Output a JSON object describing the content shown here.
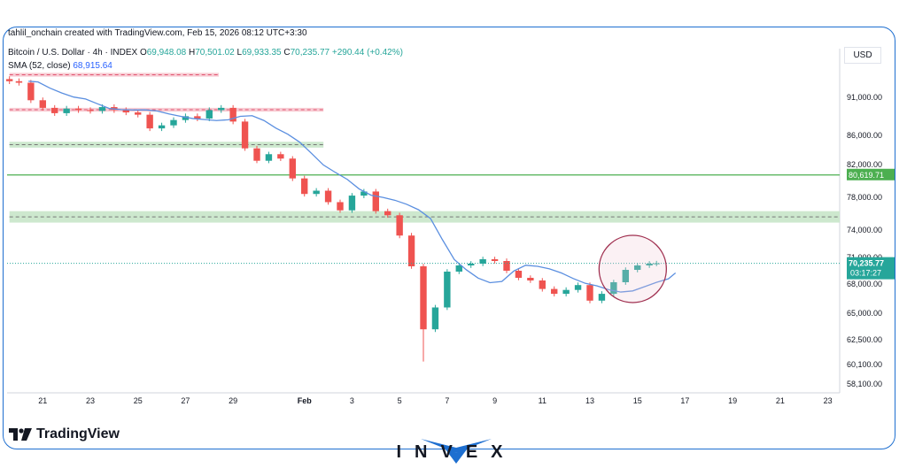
{
  "credit": "tahlil_onchain created with TradingView.com, Feb 15, 2026 08:12 UTC+3:30",
  "legend": {
    "symbol": "Bitcoin / U.S. Dollar · 4h · INDEX",
    "open_label": "O",
    "open": "69,948.08",
    "high_label": "H",
    "high": "70,501.02",
    "low_label": "L",
    "low": "69,933.35",
    "close_label": "C",
    "close": "70,235.77",
    "change": "+290.44 (+0.42%)",
    "sma_label": "SMA (52, close)",
    "sma_value": "68,915.64"
  },
  "currency": "USD",
  "brand": "TradingView",
  "watermark": {
    "letters": "INVEX"
  },
  "colors": {
    "up": "#26a69a",
    "down": "#ef5350",
    "sma": "#5b8fe0",
    "green_line": "#4caf50",
    "red_zone": "#f7c6cf",
    "green_zone": "#c8e6c9",
    "circle": "#a03050",
    "frame": "#1e6fd0"
  },
  "chart_data": {
    "type": "candlestick",
    "timeframe": "4h",
    "x_tick_labels": [
      "21",
      "23",
      "25",
      "27",
      "29",
      "Feb",
      "3",
      "5",
      "7",
      "9",
      "11",
      "13",
      "15",
      "17",
      "19",
      "21",
      "23"
    ],
    "y_tick_labels": [
      "58,100.00",
      "60,100.00",
      "62,500.00",
      "65,000.00",
      "68,000.00",
      "71,000.00",
      "74,000.00",
      "78,000.00",
      "82,000.00",
      "86,000.00",
      "91,000.00"
    ],
    "y_ticks": [
      58100,
      60100,
      62500,
      65000,
      68000,
      71000,
      74000,
      78000,
      82000,
      86000,
      91000
    ],
    "ylim": [
      57200,
      95200
    ],
    "x_range_days": [
      19.5,
      54.5
    ],
    "sma_period": 52,
    "last_price": 70235.77,
    "last_price_label": "70,235.77",
    "countdown": "03:17:27",
    "green_line_label": "80,619.71",
    "green_line_level": 80619.71,
    "zones": [
      {
        "kind": "resistance",
        "color": "red",
        "low": 93600,
        "high": 94100,
        "from_day": 19.6,
        "to_day": 28.4,
        "midline": true
      },
      {
        "kind": "resistance",
        "color": "red",
        "low": 89000,
        "high": 89500,
        "from_day": 19.6,
        "to_day": 32.8,
        "midline": true
      },
      {
        "kind": "support",
        "color": "green",
        "low": 84200,
        "high": 85000,
        "from_day": 19.6,
        "to_day": 32.8,
        "midline": true
      },
      {
        "kind": "support",
        "color": "green",
        "low": 74800,
        "high": 76200,
        "from_day": 19.6,
        "to_day": 54.5,
        "midline": true
      }
    ],
    "highlight_circle": {
      "day": 45.8,
      "price": 69600
    },
    "series_ohlc_daily": [
      {
        "day": 19.6,
        "close": 93000
      },
      {
        "day": 20,
        "close": 92800
      },
      {
        "day": 20.5,
        "close": 90500
      },
      {
        "day": 21,
        "close": 89500
      },
      {
        "day": 21.5,
        "close": 88800
      },
      {
        "day": 22,
        "close": 89400
      },
      {
        "day": 22.5,
        "close": 89200
      },
      {
        "day": 23,
        "close": 89100
      },
      {
        "day": 23.5,
        "close": 89600
      },
      {
        "day": 24,
        "close": 89200
      },
      {
        "day": 24.5,
        "close": 88900
      },
      {
        "day": 25,
        "close": 88600
      },
      {
        "day": 25.5,
        "close": 86800
      },
      {
        "day": 26,
        "close": 87200
      },
      {
        "day": 26.5,
        "close": 87900
      },
      {
        "day": 27,
        "close": 88400
      },
      {
        "day": 27.5,
        "close": 88100
      },
      {
        "day": 28,
        "close": 89200
      },
      {
        "day": 28.5,
        "close": 89500
      },
      {
        "day": 29,
        "close": 87700
      },
      {
        "day": 29.5,
        "close": 84100
      },
      {
        "day": 30,
        "close": 82400
      },
      {
        "day": 30.5,
        "close": 83300
      },
      {
        "day": 31,
        "close": 82700
      },
      {
        "day": 31.5,
        "close": 80200
      },
      {
        "day": 32,
        "close": 78300
      },
      {
        "day": 32.5,
        "close": 78700
      },
      {
        "day": 33,
        "close": 77300
      },
      {
        "day": 33.5,
        "close": 76300
      },
      {
        "day": 34,
        "close": 78100
      },
      {
        "day": 34.5,
        "close": 78600
      },
      {
        "day": 35,
        "close": 76200
      },
      {
        "day": 35.5,
        "close": 75700
      },
      {
        "day": 36,
        "close": 73300
      },
      {
        "day": 36.5,
        "close": 69900
      },
      {
        "day": 37,
        "close": 63400
      },
      {
        "day": 37.5,
        "close": 65500
      },
      {
        "day": 38,
        "close": 69300
      },
      {
        "day": 38.5,
        "close": 70000
      },
      {
        "day": 39,
        "close": 70200
      },
      {
        "day": 39.5,
        "close": 70700
      },
      {
        "day": 40,
        "close": 70500
      },
      {
        "day": 40.5,
        "close": 69400
      },
      {
        "day": 41,
        "close": 68600
      },
      {
        "day": 41.5,
        "close": 68300
      },
      {
        "day": 42,
        "close": 67400
      },
      {
        "day": 42.5,
        "close": 66900
      },
      {
        "day": 43,
        "close": 67300
      },
      {
        "day": 43.5,
        "close": 67800
      },
      {
        "day": 44,
        "close": 66200
      },
      {
        "day": 44.5,
        "close": 66900
      },
      {
        "day": 45,
        "close": 68100
      },
      {
        "day": 45.5,
        "close": 69500
      },
      {
        "day": 46,
        "close": 70000
      },
      {
        "day": 46.5,
        "close": 70200
      },
      {
        "day": 46.8,
        "close": 70235.77
      }
    ]
  }
}
